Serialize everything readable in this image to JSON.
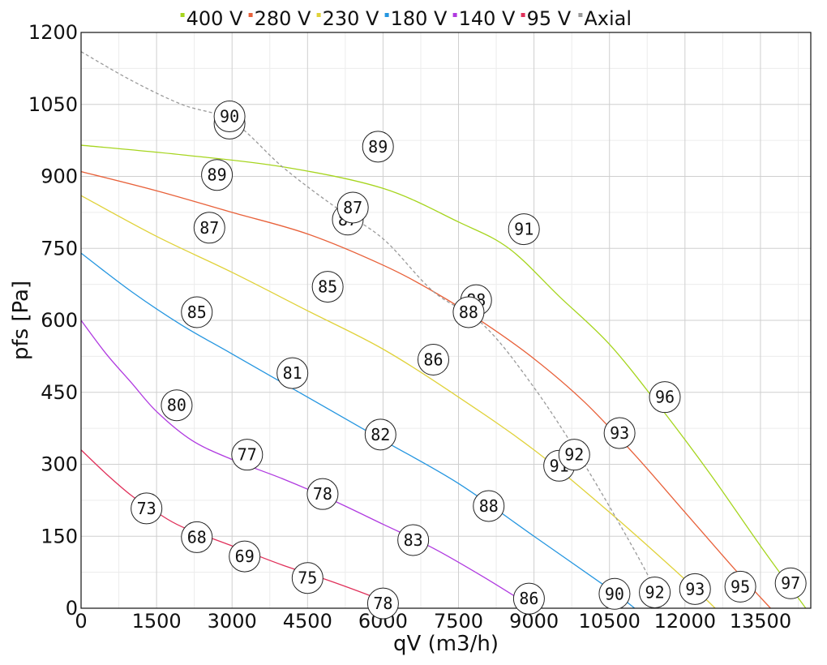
{
  "chart_data": {
    "type": "line",
    "xlabel": "qV (m3/h)",
    "ylabel": "pfs [Pa]",
    "xlim": [
      0,
      14500
    ],
    "ylim": [
      0,
      1200
    ],
    "xticks": [
      0,
      1500,
      3000,
      4500,
      6000,
      7500,
      9000,
      10500,
      12000,
      13500
    ],
    "yticks": [
      0,
      150,
      300,
      450,
      600,
      750,
      900,
      1050,
      1200
    ],
    "grid": true,
    "legend_position": "top",
    "series": [
      {
        "name": "400 V",
        "color": "#a6d51e",
        "dashed": false,
        "x": [
          0,
          2000,
          4000,
          6000,
          7500,
          8500,
          9500,
          10500,
          11500,
          12500,
          13500,
          14400
        ],
        "y": [
          965,
          945,
          920,
          875,
          805,
          750,
          650,
          550,
          420,
          280,
          130,
          0
        ]
      },
      {
        "name": "280 V",
        "color": "#e8613a",
        "dashed": false,
        "x": [
          0,
          1500,
          3000,
          4500,
          6000,
          7000,
          8000,
          9000,
          10000,
          11000,
          12000,
          13000,
          13700
        ],
        "y": [
          910,
          870,
          825,
          780,
          715,
          660,
          595,
          520,
          430,
          320,
          200,
          80,
          0
        ]
      },
      {
        "name": "230 V",
        "color": "#e0d23a",
        "dashed": false,
        "x": [
          0,
          1500,
          3000,
          4500,
          6000,
          7500,
          9000,
          10500,
          12000,
          12600
        ],
        "y": [
          860,
          775,
          700,
          620,
          540,
          440,
          330,
          200,
          60,
          0
        ]
      },
      {
        "name": "180 V",
        "color": "#2596e0",
        "dashed": false,
        "x": [
          0,
          1000,
          2000,
          3000,
          4500,
          6000,
          7500,
          9000,
          10500,
          11000
        ],
        "y": [
          740,
          660,
          590,
          530,
          440,
          350,
          260,
          150,
          40,
          0
        ]
      },
      {
        "name": "140 V",
        "color": "#b03ae0",
        "dashed": false,
        "x": [
          0,
          500,
          1000,
          1500,
          2200,
          3000,
          4000,
          5000,
          6000,
          7000,
          8000,
          9000
        ],
        "y": [
          600,
          530,
          470,
          410,
          350,
          310,
          270,
          225,
          175,
          125,
          65,
          0
        ]
      },
      {
        "name": "95 V",
        "color": "#e0305a",
        "dashed": false,
        "x": [
          0,
          500,
          1000,
          1500,
          2000,
          3000,
          4000,
          5000,
          6000,
          6100
        ],
        "y": [
          330,
          280,
          235,
          200,
          170,
          130,
          90,
          55,
          15,
          0
        ]
      },
      {
        "name": "Axial",
        "color": "#9a9a9a",
        "dashed": true,
        "x": [
          0,
          1000,
          2000,
          3000,
          4000,
          5000,
          6000,
          7000,
          8000,
          9000,
          10000,
          11000,
          11500
        ],
        "y": [
          1160,
          1100,
          1050,
          1015,
          920,
          840,
          770,
          660,
          590,
          460,
          300,
          120,
          20
        ]
      }
    ],
    "annotations": [
      {
        "label": "90",
        "x": 2950,
        "y": 1010
      },
      {
        "label": "90",
        "x": 2950,
        "y": 1025
      },
      {
        "label": "89",
        "x": 5900,
        "y": 962
      },
      {
        "label": "89",
        "x": 2700,
        "y": 903
      },
      {
        "label": "87",
        "x": 5300,
        "y": 810
      },
      {
        "label": "87",
        "x": 5400,
        "y": 835
      },
      {
        "label": "87",
        "x": 2550,
        "y": 793
      },
      {
        "label": "91",
        "x": 8800,
        "y": 790
      },
      {
        "label": "85",
        "x": 4900,
        "y": 670
      },
      {
        "label": "88",
        "x": 7850,
        "y": 642
      },
      {
        "label": "88",
        "x": 7700,
        "y": 617
      },
      {
        "label": "85",
        "x": 2300,
        "y": 617
      },
      {
        "label": "86",
        "x": 7000,
        "y": 518
      },
      {
        "label": "81",
        "x": 4200,
        "y": 490
      },
      {
        "label": "96",
        "x": 11600,
        "y": 440
      },
      {
        "label": "80",
        "x": 1900,
        "y": 423
      },
      {
        "label": "93",
        "x": 10700,
        "y": 365
      },
      {
        "label": "82",
        "x": 5950,
        "y": 362
      },
      {
        "label": "77",
        "x": 3300,
        "y": 320
      },
      {
        "label": "91",
        "x": 9500,
        "y": 297
      },
      {
        "label": "92",
        "x": 9800,
        "y": 320
      },
      {
        "label": "78",
        "x": 4800,
        "y": 238
      },
      {
        "label": "88",
        "x": 8100,
        "y": 213
      },
      {
        "label": "73",
        "x": 1300,
        "y": 208
      },
      {
        "label": "68",
        "x": 2300,
        "y": 148
      },
      {
        "label": "83",
        "x": 6600,
        "y": 142
      },
      {
        "label": "69",
        "x": 3250,
        "y": 108
      },
      {
        "label": "75",
        "x": 4500,
        "y": 63
      },
      {
        "label": "97",
        "x": 14100,
        "y": 52
      },
      {
        "label": "95",
        "x": 13100,
        "y": 45
      },
      {
        "label": "93",
        "x": 12200,
        "y": 40
      },
      {
        "label": "92",
        "x": 11400,
        "y": 33
      },
      {
        "label": "90",
        "x": 10600,
        "y": 30
      },
      {
        "label": "86",
        "x": 8900,
        "y": 20
      },
      {
        "label": "78",
        "x": 6000,
        "y": 10
      }
    ]
  }
}
